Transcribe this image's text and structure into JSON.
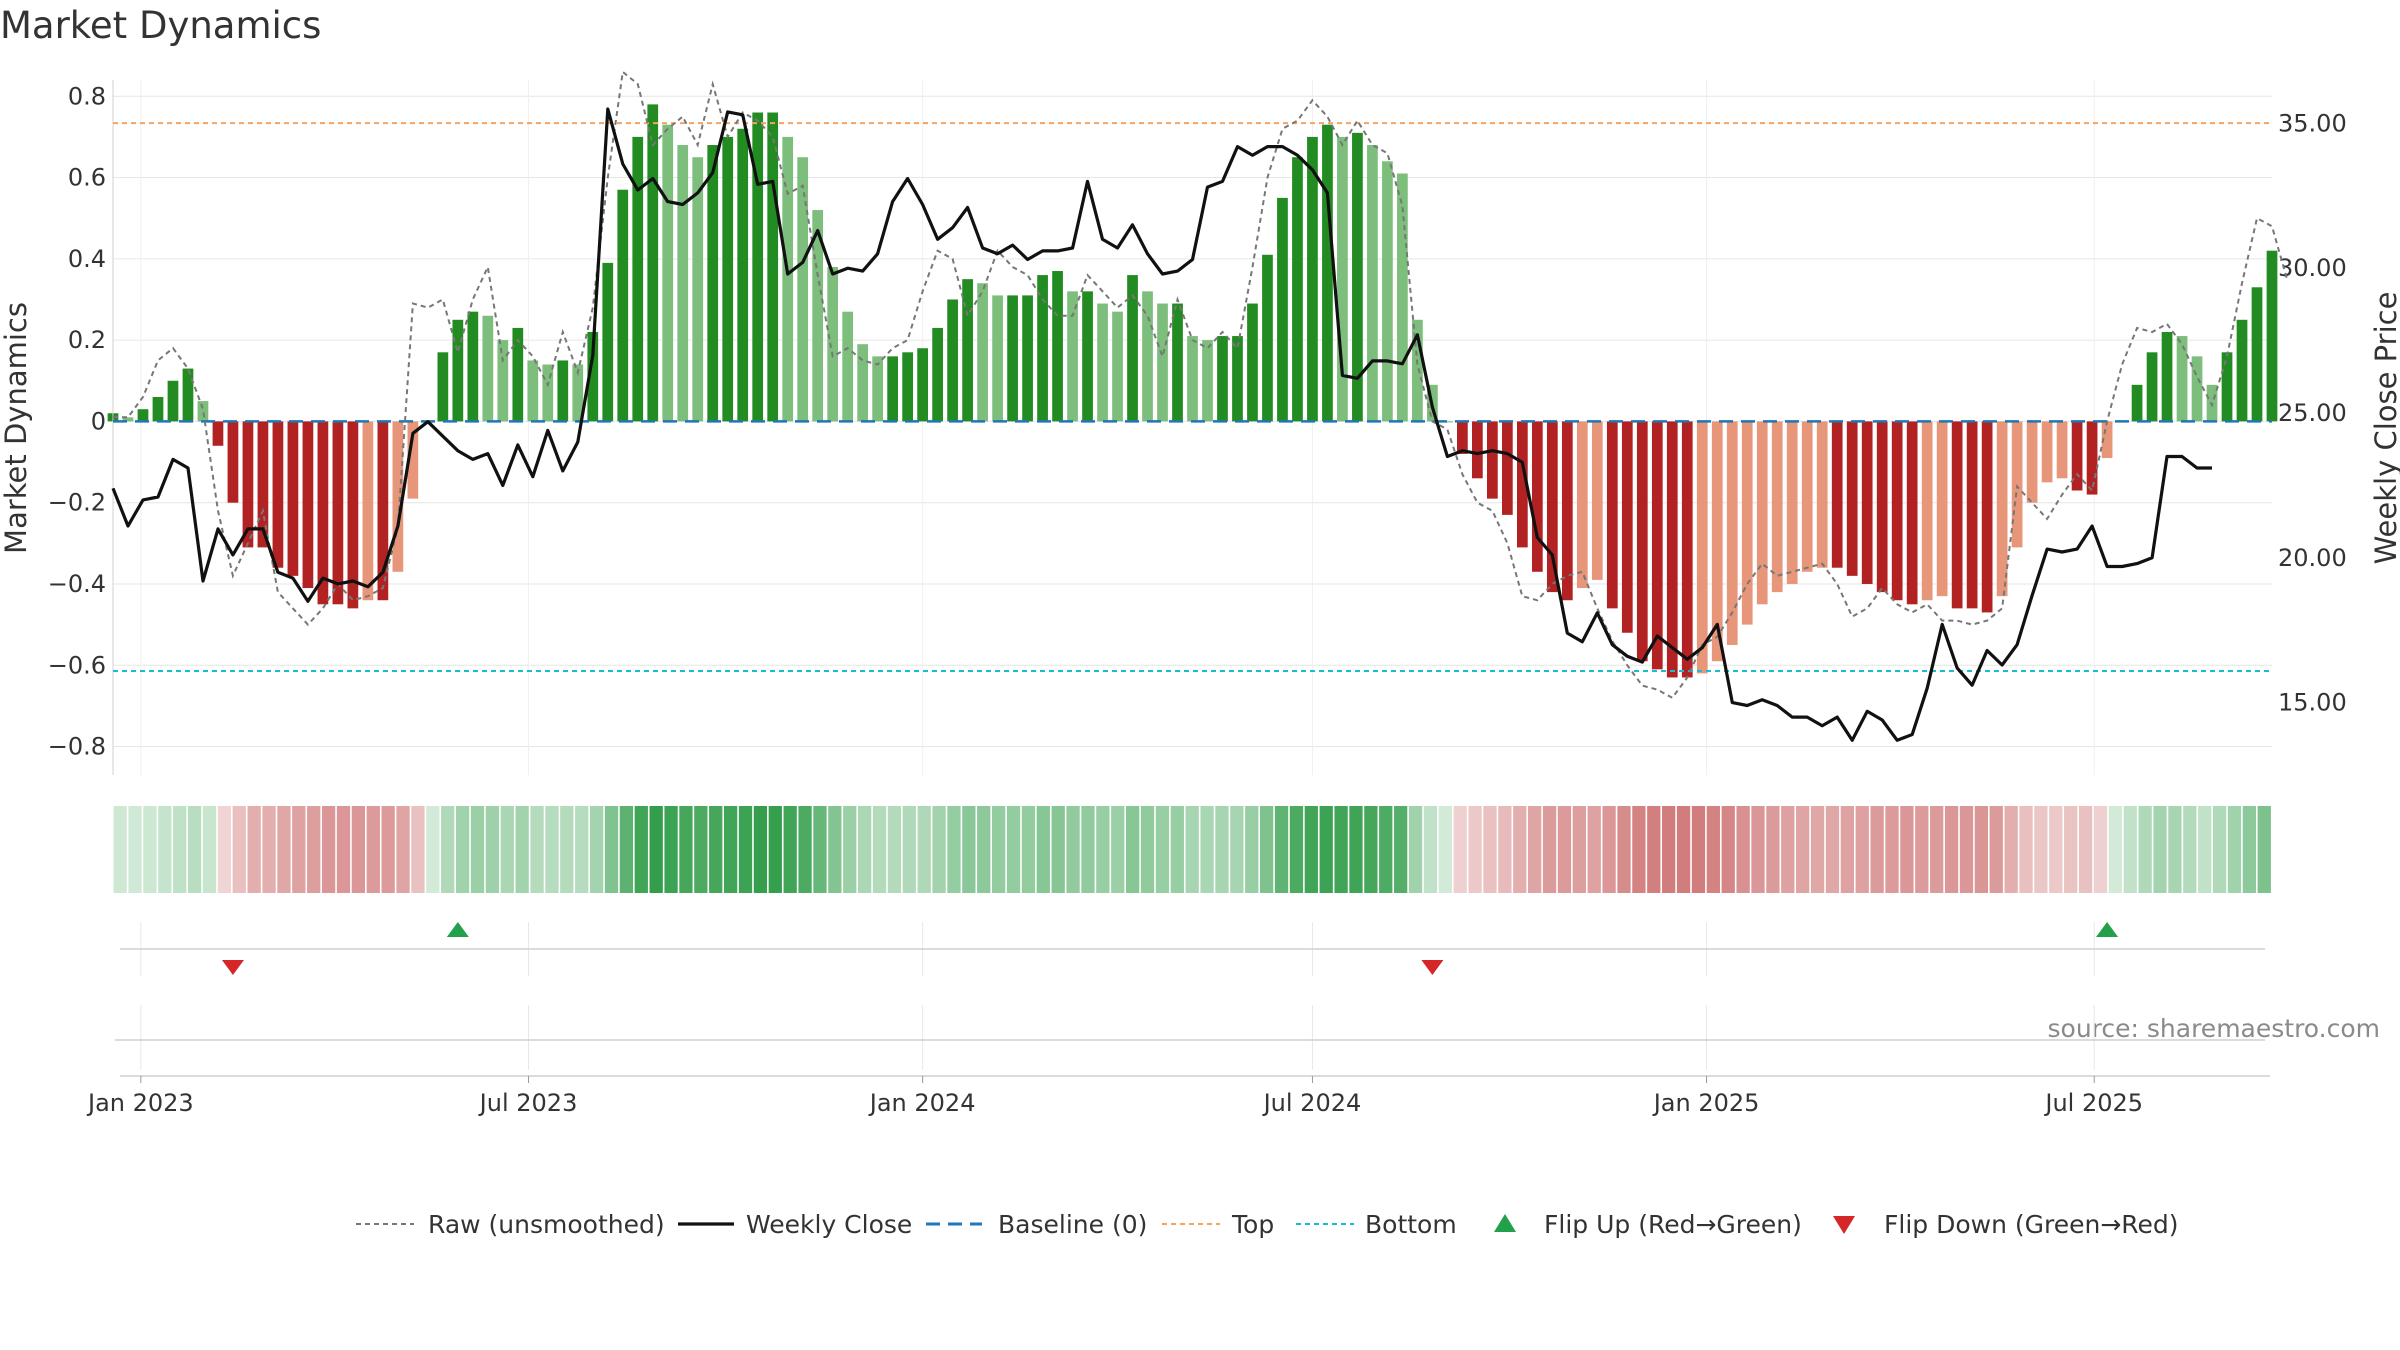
{
  "chart_data": {
    "type": "bar",
    "title": "Market Dynamics",
    "source": "source: sharemaestro.com",
    "ylabel_left": "Market Dynamics",
    "ylabel_right": "Weekly Close Price",
    "ylim_left": [
      -0.87,
      0.84
    ],
    "ylim_right": [
      12.5,
      36.5
    ],
    "yticks_left": [
      {
        "v": 0.8,
        "label": "0.8"
      },
      {
        "v": 0.6,
        "label": "0.6"
      },
      {
        "v": 0.4,
        "label": "0.4"
      },
      {
        "v": 0.2,
        "label": "0.2"
      },
      {
        "v": 0,
        "label": "0"
      },
      {
        "v": -0.2,
        "label": "−0.2"
      },
      {
        "v": -0.4,
        "label": "−0.4"
      },
      {
        "v": -0.6,
        "label": "−0.6"
      },
      {
        "v": -0.8,
        "label": "−0.8"
      }
    ],
    "yticks_right": [
      {
        "v": 35,
        "label": "35.00"
      },
      {
        "v": 30,
        "label": "30.00"
      },
      {
        "v": 25,
        "label": "25.00"
      },
      {
        "v": 20,
        "label": "20.00"
      },
      {
        "v": 15,
        "label": "15.00"
      }
    ],
    "x_start": "2022-12-19",
    "x_end": "2025-09-22",
    "xticks": [
      {
        "date": "2023-01-01",
        "label": "Jan 2023"
      },
      {
        "date": "2023-07-01",
        "label": "Jul 2023"
      },
      {
        "date": "2024-01-01",
        "label": "Jan 2024"
      },
      {
        "date": "2024-07-01",
        "label": "Jul 2024"
      },
      {
        "date": "2025-01-01",
        "label": "Jan 2025"
      },
      {
        "date": "2025-07-01",
        "label": "Jul 2025"
      }
    ],
    "first_week": "2022-12-19",
    "weeks": 145,
    "smoothed": [
      0.02,
      0.01,
      0.03,
      0.06,
      0.1,
      0.13,
      0.05,
      -0.06,
      -0.2,
      -0.31,
      -0.31,
      -0.36,
      -0.38,
      -0.41,
      -0.45,
      -0.45,
      -0.46,
      -0.44,
      -0.44,
      -0.37,
      -0.19,
      0,
      0.17,
      0.25,
      0.27,
      0.26,
      0.2,
      0.23,
      0.15,
      0.14,
      0.15,
      0.14,
      0.22,
      0.39,
      0.57,
      0.7,
      0.78,
      0.73,
      0.68,
      0.65,
      0.68,
      0.7,
      0.72,
      0.76,
      0.76,
      0.7,
      0.65,
      0.52,
      0.38,
      0.27,
      0.19,
      0.16,
      0.16,
      0.17,
      0.18,
      0.23,
      0.3,
      0.35,
      0.34,
      0.31,
      0.31,
      0.31,
      0.36,
      0.37,
      0.32,
      0.32,
      0.29,
      0.27,
      0.36,
      0.32,
      0.29,
      0.29,
      0.21,
      0.2,
      0.21,
      0.21,
      0.29,
      0.41,
      0.55,
      0.65,
      0.7,
      0.73,
      0.7,
      0.71,
      0.68,
      0.64,
      0.61,
      0.25,
      0.09,
      0,
      -0.08,
      -0.14,
      -0.19,
      -0.23,
      -0.31,
      -0.37,
      -0.42,
      -0.44,
      -0.41,
      -0.39,
      -0.46,
      -0.52,
      -0.59,
      -0.61,
      -0.63,
      -0.63,
      -0.62,
      -0.59,
      -0.55,
      -0.5,
      -0.45,
      -0.42,
      -0.4,
      -0.37,
      -0.36,
      -0.36,
      -0.38,
      -0.4,
      -0.42,
      -0.44,
      -0.45,
      -0.44,
      -0.43,
      -0.46,
      -0.46,
      -0.47,
      -0.43,
      -0.31,
      -0.2,
      -0.15,
      -0.14,
      -0.17,
      -0.18,
      -0.09,
      0,
      0.09,
      0.17,
      0.22,
      0.21,
      0.16,
      0.09,
      0.17,
      0.25,
      0.33,
      0.42
    ],
    "raw": [
      0.01,
      0.01,
      0.06,
      0.15,
      0.18,
      0.13,
      0.03,
      -0.22,
      -0.38,
      -0.3,
      -0.22,
      -0.42,
      -0.46,
      -0.5,
      -0.46,
      -0.4,
      -0.44,
      -0.43,
      -0.41,
      -0.26,
      0.29,
      0.28,
      0.3,
      0.17,
      0.3,
      0.38,
      0.15,
      0.2,
      0.16,
      0.09,
      0.22,
      0.12,
      0.28,
      0.6,
      0.86,
      0.83,
      0.68,
      0.72,
      0.75,
      0.68,
      0.83,
      0.7,
      0.76,
      0.74,
      0.7,
      0.56,
      0.58,
      0.36,
      0.16,
      0.18,
      0.15,
      0.14,
      0.18,
      0.2,
      0.32,
      0.42,
      0.4,
      0.26,
      0.32,
      0.42,
      0.38,
      0.36,
      0.3,
      0.26,
      0.26,
      0.36,
      0.32,
      0.28,
      0.31,
      0.26,
      0.16,
      0.3,
      0.2,
      0.18,
      0.22,
      0.18,
      0.38,
      0.6,
      0.72,
      0.74,
      0.79,
      0.75,
      0.68,
      0.74,
      0.68,
      0.66,
      0.53,
      0.14,
      0,
      -0.02,
      -0.13,
      -0.2,
      -0.22,
      -0.3,
      -0.43,
      -0.44,
      -0.4,
      -0.38,
      -0.37,
      -0.46,
      -0.54,
      -0.6,
      -0.65,
      -0.66,
      -0.68,
      -0.63,
      -0.55,
      -0.53,
      -0.47,
      -0.4,
      -0.35,
      -0.38,
      -0.37,
      -0.36,
      -0.35,
      -0.4,
      -0.48,
      -0.46,
      -0.41,
      -0.45,
      -0.47,
      -0.45,
      -0.49,
      -0.49,
      -0.5,
      -0.49,
      -0.46,
      -0.16,
      -0.2,
      -0.24,
      -0.18,
      -0.13,
      -0.17,
      0,
      0.14,
      0.23,
      0.22,
      0.24,
      0.19,
      0.11,
      0.04,
      0.16,
      0.34,
      0.5,
      0.48,
      0.35
    ],
    "close": [
      22.4,
      21.1,
      22,
      22.1,
      23.4,
      23.1,
      19.2,
      21,
      20.1,
      21,
      21,
      19.5,
      19.3,
      18.5,
      19.3,
      19.1,
      19.2,
      19,
      19.5,
      21.1,
      24.3,
      24.7,
      24.2,
      23.7,
      23.4,
      23.6,
      22.5,
      23.9,
      22.8,
      24.4,
      23,
      24,
      27,
      35.5,
      33.6,
      32.7,
      33.1,
      32.3,
      32.2,
      32.6,
      33.3,
      35.4,
      35.3,
      32.9,
      33,
      29.8,
      30.2,
      31.3,
      29.8,
      30,
      29.9,
      30.5,
      32.3,
      33.1,
      32.2,
      31,
      31.4,
      32.1,
      30.7,
      30.5,
      30.8,
      30.3,
      30.6,
      30.6,
      30.7,
      33,
      31,
      30.7,
      31.5,
      30.5,
      29.8,
      29.9,
      30.3,
      32.8,
      33,
      34.2,
      33.9,
      34.2,
      34.2,
      33.9,
      33.4,
      32.6,
      26.3,
      26.2,
      26.8,
      26.8,
      26.7,
      27.7,
      25.2,
      23.5,
      23.7,
      23.6,
      23.7,
      23.6,
      23.3,
      20.7,
      20.1,
      17.4,
      17.1,
      18.1,
      17,
      16.6,
      16.4,
      17.3,
      16.9,
      16.5,
      16.9,
      17.7,
      15,
      14.9,
      15.1,
      14.9,
      14.5,
      14.5,
      14.2,
      14.5,
      13.7,
      14.7,
      14.4,
      13.7,
      13.9,
      15.5,
      17.7,
      16.2,
      15.6,
      16.8,
      16.3,
      17,
      18.7,
      20.3,
      20.2,
      20.3,
      21.1,
      19.7,
      19.7,
      19.8,
      20,
      23.5,
      23.5,
      23.1,
      23.1
    ],
    "baseline": 0,
    "top": 0.734,
    "bottom": -0.614,
    "flips": [
      {
        "date": "2023-02-13",
        "dir": "down"
      },
      {
        "date": "2023-05-29",
        "dir": "up"
      },
      {
        "date": "2024-08-26",
        "dir": "down"
      },
      {
        "date": "2025-07-07",
        "dir": "up"
      }
    ],
    "legend": [
      {
        "key": "raw",
        "label": "Raw (unsmoothed)"
      },
      {
        "key": "close",
        "label": "Weekly Close"
      },
      {
        "key": "baseline",
        "label": "Baseline (0)"
      },
      {
        "key": "top",
        "label": "Top"
      },
      {
        "key": "bottom",
        "label": "Bottom"
      },
      {
        "key": "flip_up",
        "label": "Flip Up (Red→Green)"
      },
      {
        "key": "flip_down",
        "label": "Flip Down (Green→Red)"
      }
    ],
    "colors": {
      "green_strong": "#228B22",
      "green_light": "#7DBE7D",
      "red_strong": "#B22222",
      "red_light": "#E8967A",
      "close": "#111111",
      "raw": "#777777",
      "baseline": "#1f77b4",
      "top": "#f4a460",
      "bottom": "#17becf",
      "flip_up": "#22A04A",
      "flip_down": "#D62728",
      "grid": "#e6e6e6"
    }
  }
}
